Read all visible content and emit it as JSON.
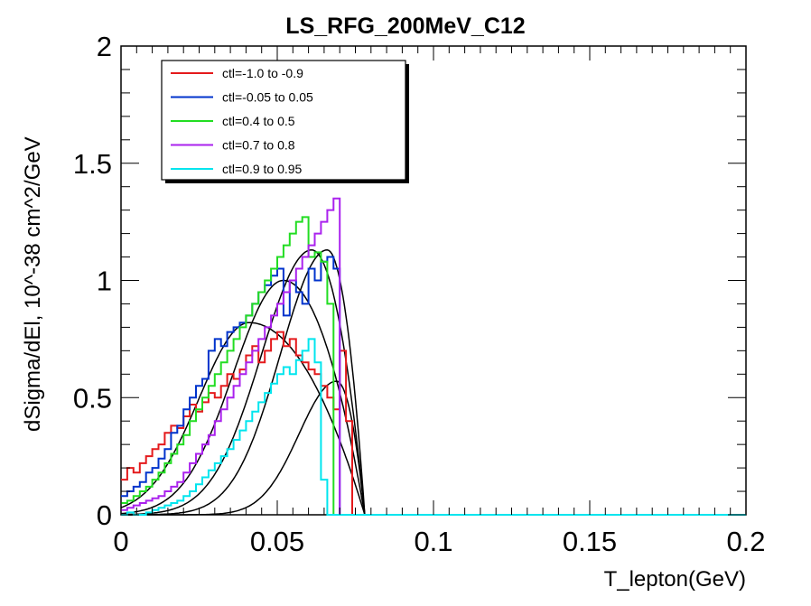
{
  "chart_data": {
    "type": "line",
    "title": "LS_RFG_200MeV_C12",
    "xlabel": "T_lepton(GeV)",
    "ylabel": "dSigma/dEl, 10^-38 cm^2/GeV",
    "xlim": [
      0,
      0.2
    ],
    "ylim": [
      0,
      2
    ],
    "x_ticks": [
      0,
      0.05,
      0.1,
      0.15,
      0.2
    ],
    "x_tick_labels": [
      "0",
      "0.05",
      "0.1",
      "0.15",
      "0.2"
    ],
    "y_ticks": [
      0,
      0.5,
      1,
      1.5,
      2
    ],
    "y_tick_labels": [
      "0",
      "0.5",
      "1",
      "1.5",
      "2"
    ],
    "grid": false,
    "legend_position": "top-left",
    "bin_width": 0.002,
    "series": [
      {
        "name": "ctl=-1.0 to -0.9",
        "color": "#e41a1c",
        "style": "step",
        "values": [
          0.15,
          0.2,
          0.18,
          0.22,
          0.25,
          0.28,
          0.3,
          0.35,
          0.38,
          0.37,
          0.42,
          0.47,
          0.44,
          0.48,
          0.52,
          0.5,
          0.55,
          0.6,
          0.58,
          0.62,
          0.68,
          0.72,
          0.65,
          0.7,
          0.75,
          0.78,
          0.72,
          0.75,
          0.68,
          0.65,
          0.62,
          0.6,
          0.55,
          0.5,
          0.45,
          0.7,
          0.4
        ]
      },
      {
        "name": "ctl=-0.05 to 0.05",
        "color": "#0033cc",
        "style": "step",
        "values": [
          0.08,
          0.1,
          0.12,
          0.14,
          0.18,
          0.2,
          0.24,
          0.28,
          0.35,
          0.38,
          0.45,
          0.5,
          0.55,
          0.58,
          0.7,
          0.75,
          0.72,
          0.78,
          0.8,
          0.82,
          0.85,
          0.9,
          0.95,
          0.98,
          1.02,
          1.05,
          0.85,
          1.0,
          0.95,
          0.9,
          1.05,
          1.0,
          1.08,
          1.1,
          1.05
        ]
      },
      {
        "name": "ctl=0.4 to 0.5",
        "color": "#22dd22",
        "style": "step",
        "values": [
          0.05,
          0.06,
          0.08,
          0.1,
          0.12,
          0.15,
          0.18,
          0.22,
          0.26,
          0.3,
          0.34,
          0.4,
          0.45,
          0.5,
          0.55,
          0.6,
          0.65,
          0.7,
          0.75,
          0.8,
          0.85,
          0.9,
          0.95,
          1.0,
          1.05,
          1.1,
          1.15,
          1.2,
          1.25,
          1.27,
          1.1,
          1.12,
          1.08,
          0.9
        ]
      },
      {
        "name": "ctl=0.7 to 0.8",
        "color": "#aa22ee",
        "style": "step",
        "values": [
          0.02,
          0.03,
          0.04,
          0.05,
          0.06,
          0.07,
          0.08,
          0.1,
          0.12,
          0.14,
          0.18,
          0.22,
          0.26,
          0.3,
          0.34,
          0.4,
          0.45,
          0.5,
          0.55,
          0.6,
          0.65,
          0.7,
          0.75,
          0.8,
          0.85,
          0.9,
          0.95,
          1.0,
          1.05,
          1.1,
          1.15,
          1.2,
          1.25,
          1.3,
          1.35
        ]
      },
      {
        "name": "ctl=0.9 to 0.95",
        "color": "#00e5ee",
        "style": "step",
        "values": [
          0.0,
          0.01,
          0.0,
          0.0,
          0.01,
          0.02,
          0.03,
          0.04,
          0.05,
          0.06,
          0.08,
          0.1,
          0.13,
          0.16,
          0.19,
          0.22,
          0.25,
          0.28,
          0.32,
          0.36,
          0.4,
          0.44,
          0.48,
          0.52,
          0.56,
          0.6,
          0.63,
          0.6,
          0.66,
          0.7,
          0.75,
          0.65,
          0.15,
          0.0
        ]
      },
      {
        "color": "#000000",
        "style": "smooth",
        "peak_x": 0.041,
        "peak_y": 0.82,
        "sigma_left": 0.016,
        "end_x": 0.078
      },
      {
        "color": "#000000",
        "style": "smooth",
        "peak_x": 0.052,
        "peak_y": 1.0,
        "sigma_left": 0.016,
        "end_x": 0.078
      },
      {
        "color": "#000000",
        "style": "smooth",
        "peak_x": 0.061,
        "peak_y": 1.13,
        "sigma_left": 0.016,
        "end_x": 0.078
      },
      {
        "color": "#000000",
        "style": "smooth",
        "peak_x": 0.066,
        "peak_y": 1.13,
        "sigma_left": 0.015,
        "end_x": 0.078
      },
      {
        "color": "#000000",
        "style": "smooth",
        "peak_x": 0.069,
        "peak_y": 0.57,
        "sigma_left": 0.012,
        "end_x": 0.078
      }
    ]
  }
}
